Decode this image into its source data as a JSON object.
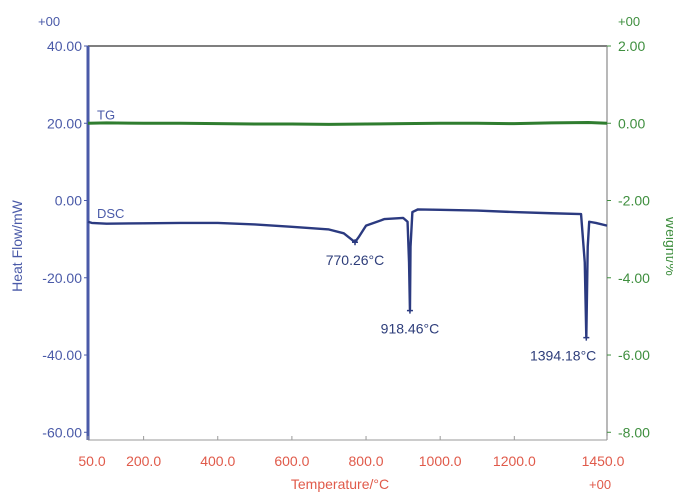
{
  "chart_data": {
    "type": "line",
    "title": "",
    "xlabel": "Temperature/°C",
    "ylabel_left": "Heat Flow/mW",
    "ylabel_right": "Weight/%",
    "xlim": [
      50,
      1450
    ],
    "ylim_left": [
      -62,
      40
    ],
    "ylim_right": [
      -8.2,
      2.0
    ],
    "x_ticks": [
      "50.0",
      "200.0",
      "400.0",
      "600.0",
      "800.0",
      "1000.0",
      "1200.0",
      "1450.0"
    ],
    "x_tick_values": [
      50,
      200,
      400,
      600,
      800,
      1000,
      1200,
      1450
    ],
    "y_left_ticks": [
      "40.00",
      "20.00",
      "0.00",
      "-20.00",
      "-40.00",
      "-60.00"
    ],
    "y_left_tick_values": [
      40,
      20,
      0,
      -20,
      -40,
      -60
    ],
    "y_right_ticks": [
      "2.00",
      "0.00",
      "-2.00",
      "-4.00",
      "-6.00",
      "-8.00"
    ],
    "y_right_tick_values": [
      2,
      0,
      -2,
      -4,
      -6,
      -8
    ],
    "exponent_labels": {
      "top_left": "+00",
      "top_right": "+00",
      "bottom_right": "+00"
    },
    "colors": {
      "dsc": "#2b3a80",
      "tg": "#2f7d2f",
      "left_axis": "#4a5aa8",
      "right_axis": "#3f8f3f",
      "x_axis": "#e05a4a",
      "frame": "#555555"
    },
    "series": [
      {
        "name": "TG",
        "axis": "right",
        "x": [
          50,
          100,
          200,
          300,
          400,
          500,
          600,
          700,
          800,
          900,
          1000,
          1100,
          1200,
          1300,
          1400,
          1450
        ],
        "y": [
          0.0,
          0.01,
          0.0,
          0.0,
          -0.01,
          -0.02,
          -0.02,
          -0.03,
          -0.02,
          -0.01,
          0.0,
          0.0,
          -0.01,
          0.01,
          0.02,
          0.0
        ]
      },
      {
        "name": "DSC",
        "axis": "left",
        "x": [
          50,
          60,
          100,
          200,
          300,
          400,
          500,
          600,
          700,
          740,
          760,
          770.26,
          780,
          800,
          850,
          900,
          912,
          916,
          918.46,
          920,
          925,
          940,
          1000,
          1100,
          1200,
          1300,
          1380,
          1390,
          1394.18,
          1398,
          1402,
          1420,
          1450
        ],
        "y": [
          -5.5,
          -5.8,
          -6.0,
          -5.9,
          -5.8,
          -5.8,
          -6.2,
          -6.8,
          -7.5,
          -8.5,
          -10.0,
          -10.8,
          -9.5,
          -6.5,
          -4.8,
          -4.5,
          -5.5,
          -16.0,
          -28.5,
          -12.0,
          -3.0,
          -2.3,
          -2.4,
          -2.6,
          -3.0,
          -3.3,
          -3.5,
          -16.0,
          -35.5,
          -12.0,
          -5.5,
          -5.8,
          -6.5
        ]
      }
    ],
    "annotations": [
      {
        "text": "770.26°C",
        "x": 770.26,
        "y": -10.8,
        "series": "DSC"
      },
      {
        "text": "918.46°C",
        "x": 918.46,
        "y": -28.5,
        "series": "DSC"
      },
      {
        "text": "1394.18°C",
        "x": 1394.18,
        "y": -35.5,
        "series": "DSC"
      }
    ],
    "grid": false,
    "legend": "none"
  }
}
